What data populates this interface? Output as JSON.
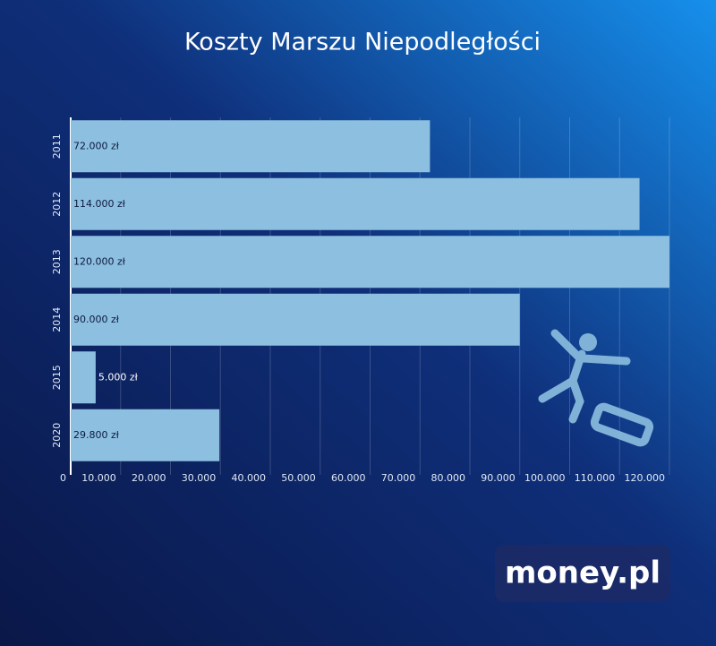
{
  "chart_data": {
    "type": "bar",
    "orientation": "horizontal",
    "title": "Koszty Marszu Niepodległości",
    "categories": [
      "2011",
      "2012",
      "2013",
      "2014",
      "2015",
      "2020"
    ],
    "values": [
      72000,
      114000,
      120000,
      90000,
      5000,
      29800
    ],
    "value_labels": [
      "72.000 zł",
      "114.000 zł",
      "120.000 zł",
      "90.000 zł",
      "5.000 zł",
      "29.800 zł"
    ],
    "color": "#8dbfe0",
    "xlim": [
      0,
      120000
    ],
    "xticks": [
      0,
      {
        "value": 10000,
        "label": "10.000"
      },
      {
        "value": 20000,
        "label": "20.000"
      },
      {
        "value": 30000,
        "label": "30.000"
      },
      {
        "value": 40000,
        "label": "40.000"
      },
      {
        "value": 50000,
        "label": "50.000"
      },
      {
        "value": 60000,
        "label": "60.000"
      },
      {
        "value": 70000,
        "label": "70.000"
      },
      {
        "value": 80000,
        "label": "80.000"
      },
      {
        "value": 90000,
        "label": "90.000"
      },
      {
        "value": 100000,
        "label": "100.000"
      },
      {
        "value": 110000,
        "label": "110.000"
      },
      {
        "value": 120000,
        "label": "120.000"
      }
    ],
    "grid": true
  },
  "logo": "money.pl"
}
